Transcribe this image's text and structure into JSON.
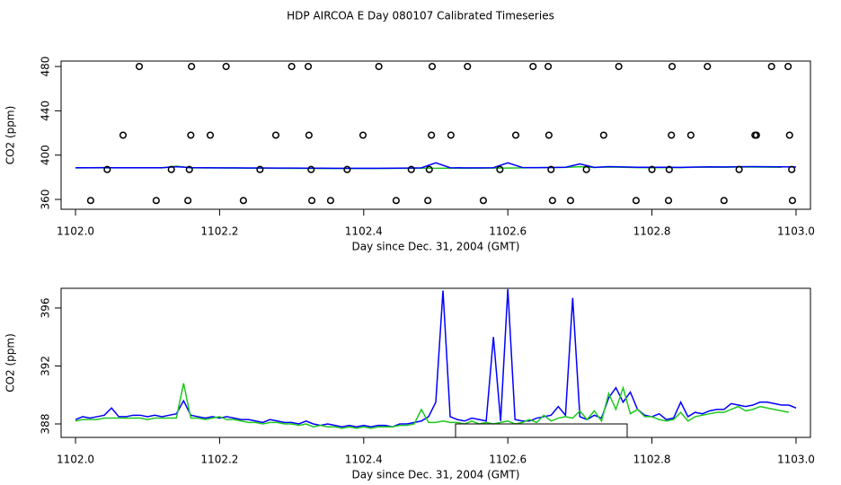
{
  "chart_data": [
    {
      "type": "line",
      "title": "HDP AIRCOA E  Day 080107  Calibrated Timeseries",
      "x_label": "Day since Dec. 31, 2004 (GMT)",
      "y_label": "CO2 (ppm)",
      "xlim": [
        1101.98,
        1103.02
      ],
      "ylim": [
        351.1,
        484.9
      ],
      "xticks": [
        {
          "value": 1102.0,
          "label": "1102.0"
        },
        {
          "value": 1102.2,
          "label": "1102.2"
        },
        {
          "value": 1102.4,
          "label": "1102.4"
        },
        {
          "value": 1102.6,
          "label": "1102.6"
        },
        {
          "value": 1102.8,
          "label": "1102.8"
        },
        {
          "value": 1103.0,
          "label": "1103.0"
        }
      ],
      "yticks": [
        360,
        400,
        440,
        480
      ],
      "x": [
        1102.0,
        1102.02,
        1102.04,
        1102.06,
        1102.08,
        1102.1,
        1102.12,
        1102.14,
        1102.16,
        1102.18,
        1102.2,
        1102.22,
        1102.24,
        1102.26,
        1102.28,
        1102.3,
        1102.32,
        1102.34,
        1102.36,
        1102.38,
        1102.4,
        1102.42,
        1102.44,
        1102.46,
        1102.48,
        1102.5,
        1102.52,
        1102.54,
        1102.56,
        1102.58,
        1102.6,
        1102.62,
        1102.64,
        1102.66,
        1102.68,
        1102.7,
        1102.72,
        1102.74,
        1102.76,
        1102.78,
        1102.8,
        1102.82,
        1102.84,
        1102.86,
        1102.88,
        1102.9,
        1102.92,
        1102.94,
        1102.96,
        1102.98,
        1103.0
      ],
      "series": [
        {
          "color": "#1ec81e",
          "values": [
            388.4,
            388.5,
            388.5,
            388.5,
            388.5,
            388.5,
            388.5,
            390.0,
            388.5,
            388.4,
            388.4,
            388.3,
            388.2,
            388.2,
            388.1,
            388.0,
            388.0,
            387.9,
            387.9,
            387.9,
            387.9,
            387.9,
            388.0,
            388.1,
            388.2,
            388.1,
            388.2,
            388.1,
            388.2,
            388.3,
            388.3,
            388.5,
            388.6,
            388.8,
            388.9,
            389.5,
            388.8,
            389.2,
            389.0,
            388.7,
            388.6,
            388.7,
            388.7,
            389.0,
            389.1,
            389.0,
            389.2,
            389.2,
            389.1,
            389.0,
            null
          ]
        },
        {
          "color": "#0000ff",
          "values": [
            388.6,
            388.6,
            388.7,
            388.6,
            388.6,
            388.6,
            388.6,
            389.5,
            388.7,
            388.6,
            388.5,
            388.5,
            388.4,
            388.4,
            388.3,
            388.3,
            388.2,
            388.2,
            388.1,
            388.1,
            388.1,
            388.1,
            388.2,
            388.3,
            388.5,
            393.0,
            388.6,
            388.5,
            388.5,
            388.6,
            393.0,
            388.8,
            388.7,
            388.8,
            389.0,
            392.0,
            388.9,
            389.6,
            389.3,
            389.0,
            389.0,
            389.0,
            388.9,
            389.2,
            389.4,
            389.3,
            389.5,
            389.6,
            389.5,
            389.4,
            389.3
          ]
        }
      ],
      "scatter": {
        "color": "#000000",
        "x": [
          1102.0885,
          1102.161,
          1102.209,
          1102.3,
          1102.323,
          1102.421,
          1102.495,
          1102.544,
          1102.635,
          1102.656,
          1102.754,
          1102.828,
          1102.877,
          1102.966,
          1102.989,
          1102.066,
          1102.16,
          1102.187,
          1102.278,
          1102.324,
          1102.399,
          1102.494,
          1102.521,
          1102.611,
          1102.657,
          1102.733,
          1102.827,
          1102.854,
          1102.943,
          1102.945,
          1102.991,
          1102.044,
          1102.133,
          1102.158,
          1102.256,
          1102.327,
          1102.377,
          1102.466,
          1102.491,
          1102.589,
          1102.66,
          1102.709,
          1102.8,
          1102.824,
          1102.921,
          1102.994,
          1102.021,
          1102.112,
          1102.156,
          1102.233,
          1102.328,
          1102.354,
          1102.445,
          1102.489,
          1102.566,
          1102.662,
          1102.687,
          1102.778,
          1102.823,
          1102.9,
          1102.995
        ],
        "values": [
          480,
          480,
          480,
          480,
          480,
          480,
          480,
          480,
          480,
          480,
          480,
          480,
          480,
          480,
          480,
          418,
          418,
          418,
          418,
          418,
          418,
          418,
          418,
          418,
          418,
          418,
          418,
          418,
          418,
          418,
          418,
          387,
          387,
          387,
          387,
          387,
          387,
          387,
          387,
          387,
          387,
          387,
          387,
          387,
          387,
          387,
          359,
          359,
          359,
          359,
          359,
          359,
          359,
          359,
          359,
          359,
          359,
          359,
          359,
          359,
          359
        ]
      }
    },
    {
      "type": "line",
      "x_label": "Day since Dec. 31, 2004 (GMT)",
      "y_label": "CO2 (ppm)",
      "xlim": [
        1101.98,
        1103.02
      ],
      "ylim": [
        387.07,
        397.36
      ],
      "xticks": [
        {
          "value": 1102.0,
          "label": "1102.0"
        },
        {
          "value": 1102.2,
          "label": "1102.2"
        },
        {
          "value": 1102.4,
          "label": "1102.4"
        },
        {
          "value": 1102.6,
          "label": "1102.6"
        },
        {
          "value": 1102.8,
          "label": "1102.8"
        },
        {
          "value": 1103.0,
          "label": "1103.0"
        }
      ],
      "yticks": [
        388,
        392,
        396
      ],
      "x": [
        1102.0,
        1102.01,
        1102.02,
        1102.03,
        1102.04,
        1102.05,
        1102.06,
        1102.07,
        1102.08,
        1102.09,
        1102.1,
        1102.11,
        1102.12,
        1102.13,
        1102.14,
        1102.15,
        1102.16,
        1102.17,
        1102.18,
        1102.19,
        1102.2,
        1102.21,
        1102.22,
        1102.23,
        1102.24,
        1102.25,
        1102.26,
        1102.27,
        1102.28,
        1102.29,
        1102.3,
        1102.31,
        1102.32,
        1102.33,
        1102.34,
        1102.35,
        1102.36,
        1102.37,
        1102.38,
        1102.39,
        1102.4,
        1102.41,
        1102.42,
        1102.43,
        1102.44,
        1102.45,
        1102.46,
        1102.47,
        1102.48,
        1102.49,
        1102.5,
        1102.51,
        1102.52,
        1102.53,
        1102.54,
        1102.55,
        1102.56,
        1102.57,
        1102.58,
        1102.59,
        1102.6,
        1102.61,
        1102.62,
        1102.63,
        1102.64,
        1102.65,
        1102.66,
        1102.67,
        1102.68,
        1102.69,
        1102.7,
        1102.71,
        1102.72,
        1102.73,
        1102.74,
        1102.75,
        1102.76,
        1102.77,
        1102.78,
        1102.79,
        1102.8,
        1102.81,
        1102.82,
        1102.83,
        1102.84,
        1102.85,
        1102.86,
        1102.87,
        1102.88,
        1102.89,
        1102.9,
        1102.91,
        1102.92,
        1102.93,
        1102.94,
        1102.95,
        1102.96,
        1102.97,
        1102.98,
        1102.99,
        1103.0
      ],
      "series": [
        {
          "color": "#0000ff",
          "values": [
            388.3,
            388.5,
            388.4,
            388.5,
            388.6,
            389.1,
            388.5,
            388.5,
            388.6,
            388.6,
            388.5,
            388.6,
            388.5,
            388.6,
            388.7,
            389.6,
            388.6,
            388.5,
            388.4,
            388.5,
            388.4,
            388.5,
            388.4,
            388.3,
            388.3,
            388.2,
            388.1,
            388.3,
            388.2,
            388.1,
            388.1,
            388.0,
            388.2,
            388.0,
            387.9,
            388.0,
            387.9,
            387.8,
            387.9,
            387.8,
            387.9,
            387.8,
            387.9,
            387.9,
            387.8,
            388.0,
            388.0,
            388.1,
            388.2,
            388.5,
            389.5,
            397.2,
            388.5,
            388.3,
            388.2,
            388.4,
            388.3,
            388.2,
            394.0,
            388.2,
            397.3,
            388.3,
            388.2,
            388.2,
            388.4,
            388.5,
            388.6,
            389.2,
            388.6,
            396.7,
            388.5,
            388.3,
            388.6,
            388.4,
            389.8,
            390.5,
            389.5,
            390.2,
            389.0,
            388.6,
            388.5,
            388.7,
            388.3,
            388.4,
            389.5,
            388.5,
            388.8,
            388.7,
            388.9,
            389.0,
            389.0,
            389.4,
            389.3,
            389.2,
            389.3,
            389.5,
            389.5,
            389.4,
            389.3,
            389.3,
            389.1
          ]
        },
        {
          "color": "#1ec81e",
          "values": [
            388.2,
            388.3,
            388.3,
            388.3,
            388.4,
            388.4,
            388.4,
            388.4,
            388.4,
            388.4,
            388.3,
            388.4,
            388.4,
            388.4,
            388.4,
            390.8,
            388.4,
            388.4,
            388.3,
            388.4,
            388.5,
            388.3,
            388.3,
            388.2,
            388.1,
            388.1,
            388.0,
            388.1,
            388.1,
            388.0,
            388.0,
            387.9,
            388.0,
            387.8,
            387.9,
            387.8,
            387.8,
            387.7,
            387.8,
            387.7,
            387.8,
            387.7,
            387.8,
            387.8,
            387.8,
            387.9,
            387.9,
            388.0,
            389.0,
            388.1,
            388.1,
            388.2,
            388.1,
            388.1,
            388.0,
            388.2,
            388.0,
            388.1,
            388.0,
            388.1,
            388.2,
            388.0,
            388.1,
            388.3,
            388.1,
            388.6,
            388.2,
            388.4,
            388.5,
            388.4,
            388.9,
            388.3,
            388.9,
            388.2,
            390.1,
            389.0,
            390.5,
            388.7,
            389.0,
            388.5,
            388.5,
            388.3,
            388.2,
            388.3,
            388.8,
            388.2,
            388.5,
            388.6,
            388.7,
            388.8,
            388.8,
            389.0,
            389.2,
            388.9,
            389.0,
            389.2,
            389.1,
            389.0,
            388.9,
            388.8,
            null
          ]
        }
      ]
    }
  ]
}
